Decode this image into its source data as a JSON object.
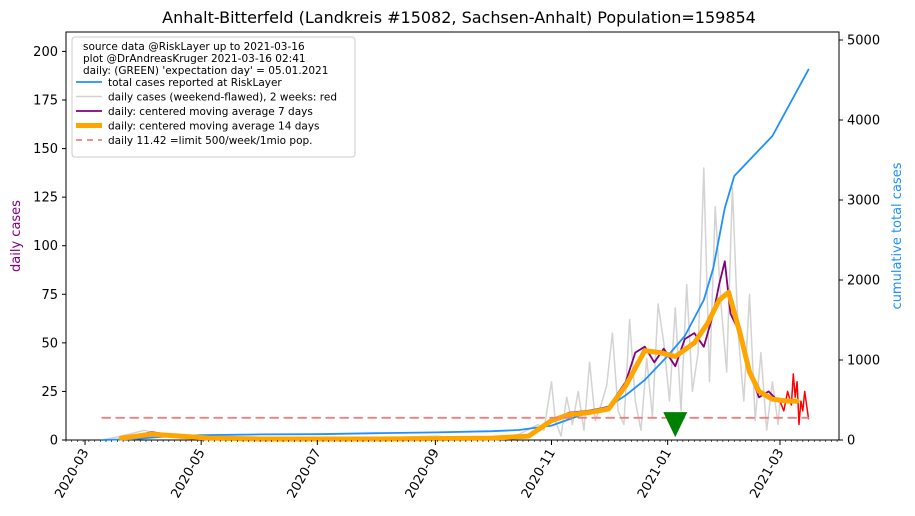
{
  "chart_data": {
    "type": "line",
    "title": "Anhalt-Bitterfeld (Landkreis #15082, Sachsen-Anhalt) Population=159854",
    "ylabel": "daily cases",
    "ylabel_color": "#800080",
    "y2label": "cumulative total cases",
    "y2label_color": "#1E90FF",
    "ylim": [
      0,
      210
    ],
    "y2lim": [
      0,
      5100
    ],
    "xlim": [
      "2020-02-20",
      "2021-04-01"
    ],
    "yticks": [
      0,
      25,
      50,
      75,
      100,
      125,
      150,
      175,
      200
    ],
    "y2ticks": [
      0,
      1000,
      2000,
      3000,
      4000,
      5000
    ],
    "xticks": [
      "2020-03",
      "2020-05",
      "2020-07",
      "2020-09",
      "2020-11",
      "2021-01",
      "2021-03"
    ],
    "legend_position": "top-left",
    "legend_text": [
      "source data @RiskLayer up to 2021-03-16",
      "plot @DrAndreasKruger 2021-03-16 02:41",
      "daily: (GREEN) 'expectation day' = 05.01.2021"
    ],
    "expectation_day": {
      "date": "2021-01-05",
      "value": 2,
      "color": "#008000"
    },
    "limit_value": 11.42,
    "series": [
      {
        "name": "total cases reported at RiskLayer",
        "color": "#1E90FF",
        "axis": "right",
        "x": [
          "2020-03-10",
          "2020-03-25",
          "2020-04-10",
          "2020-05-01",
          "2020-06-01",
          "2020-07-01",
          "2020-08-01",
          "2020-09-01",
          "2020-10-01",
          "2020-10-15",
          "2020-11-01",
          "2020-11-15",
          "2020-12-01",
          "2020-12-10",
          "2020-12-20",
          "2021-01-01",
          "2021-01-10",
          "2021-01-20",
          "2021-01-25",
          "2021-01-31",
          "2021-02-05",
          "2021-02-15",
          "2021-02-25",
          "2021-03-05",
          "2021-03-16"
        ],
        "values": [
          0,
          10,
          40,
          60,
          70,
          72,
          85,
          95,
          110,
          125,
          180,
          300,
          420,
          560,
          750,
          1050,
          1300,
          1750,
          2150,
          2900,
          3300,
          3550,
          3800,
          4150,
          4630
        ]
      },
      {
        "name": "daily cases (weekend-flawed), 2 weeks: red",
        "color": "#D3D3D3",
        "axis": "left",
        "x": [
          "2020-03-10",
          "2020-03-20",
          "2020-04-01",
          "2020-04-10",
          "2020-04-20",
          "2020-05-01",
          "2020-06-01",
          "2020-07-01",
          "2020-08-01",
          "2020-09-01",
          "2020-10-01",
          "2020-10-15",
          "2020-10-25",
          "2020-10-28",
          "2020-11-01",
          "2020-11-03",
          "2020-11-06",
          "2020-11-09",
          "2020-11-12",
          "2020-11-15",
          "2020-11-18",
          "2020-11-21",
          "2020-11-24",
          "2020-11-27",
          "2020-11-30",
          "2020-12-03",
          "2020-12-06",
          "2020-12-09",
          "2020-12-12",
          "2020-12-15",
          "2020-12-18",
          "2020-12-21",
          "2020-12-24",
          "2020-12-27",
          "2020-12-30",
          "2021-01-02",
          "2021-01-05",
          "2021-01-08",
          "2021-01-11",
          "2021-01-14",
          "2021-01-17",
          "2021-01-20",
          "2021-01-23",
          "2021-01-26",
          "2021-01-29",
          "2021-02-01",
          "2021-02-04",
          "2021-02-07",
          "2021-02-10",
          "2021-02-13",
          "2021-02-16",
          "2021-02-19",
          "2021-02-22",
          "2021-02-25",
          "2021-02-28",
          "2021-03-01"
        ],
        "values": [
          0,
          2,
          5,
          3,
          1,
          2,
          1,
          0,
          1,
          2,
          0,
          3,
          8,
          5,
          30,
          10,
          2,
          22,
          8,
          25,
          5,
          40,
          10,
          18,
          28,
          55,
          15,
          8,
          62,
          20,
          5,
          42,
          12,
          70,
          50,
          20,
          68,
          15,
          80,
          25,
          45,
          140,
          30,
          120,
          70,
          35,
          130,
          55,
          20,
          75,
          10,
          45,
          5,
          30,
          8,
          20
        ]
      },
      {
        "name": "daily cases (weekend-flawed), 2 weeks: red",
        "show_in_legend": false,
        "color": "#FF0000",
        "axis": "left",
        "x": [
          "2021-03-01",
          "2021-03-03",
          "2021-03-05",
          "2021-03-07",
          "2021-03-08",
          "2021-03-09",
          "2021-03-10",
          "2021-03-11",
          "2021-03-12",
          "2021-03-13",
          "2021-03-14",
          "2021-03-15",
          "2021-03-16"
        ],
        "values": [
          20,
          15,
          25,
          18,
          34,
          22,
          30,
          8,
          20,
          15,
          25,
          18,
          11
        ]
      },
      {
        "name": "daily: centered moving average 7 days",
        "color": "#800080",
        "axis": "left",
        "x": [
          "2020-03-20",
          "2020-04-05",
          "2020-04-20",
          "2020-05-05",
          "2020-06-01",
          "2020-08-01",
          "2020-10-01",
          "2020-10-20",
          "2020-11-01",
          "2020-11-10",
          "2020-11-20",
          "2020-12-01",
          "2020-12-10",
          "2020-12-15",
          "2020-12-20",
          "2020-12-25",
          "2020-12-30",
          "2021-01-05",
          "2021-01-10",
          "2021-01-15",
          "2021-01-20",
          "2021-01-25",
          "2021-01-28",
          "2021-01-31",
          "2021-02-03",
          "2021-02-08",
          "2021-02-13",
          "2021-02-18",
          "2021-02-23",
          "2021-02-28",
          "2021-03-05",
          "2021-03-10"
        ],
        "values": [
          1,
          4,
          2,
          1,
          0.5,
          0.5,
          1,
          2,
          10,
          14,
          15,
          17,
          30,
          45,
          48,
          40,
          47,
          38,
          52,
          55,
          48,
          65,
          80,
          92,
          65,
          55,
          35,
          22,
          25,
          20,
          20,
          20
        ]
      },
      {
        "name": "daily: centered moving average 14 days",
        "color": "#FFA500",
        "axis": "left",
        "x": [
          "2020-03-20",
          "2020-04-05",
          "2020-04-20",
          "2020-05-05",
          "2020-06-01",
          "2020-08-01",
          "2020-10-01",
          "2020-10-20",
          "2020-11-01",
          "2020-11-10",
          "2020-11-20",
          "2020-12-01",
          "2020-12-10",
          "2020-12-20",
          "2020-12-28",
          "2021-01-05",
          "2021-01-15",
          "2021-01-22",
          "2021-01-28",
          "2021-02-02",
          "2021-02-08",
          "2021-02-13",
          "2021-02-18",
          "2021-02-25",
          "2021-03-05",
          "2021-03-10"
        ],
        "values": [
          1,
          3,
          2,
          1,
          0.5,
          0.5,
          1,
          2,
          10,
          13,
          14,
          16,
          28,
          46,
          45,
          43,
          50,
          60,
          72,
          76,
          55,
          35,
          25,
          21,
          20,
          20
        ]
      },
      {
        "name": "daily 11.42 =limit 500/week/1mio pop.",
        "color": "#F08080",
        "axis": "left",
        "dashed": true,
        "x": [
          "2020-03-10",
          "2021-03-16"
        ],
        "values": [
          11.42,
          11.42
        ]
      }
    ]
  }
}
